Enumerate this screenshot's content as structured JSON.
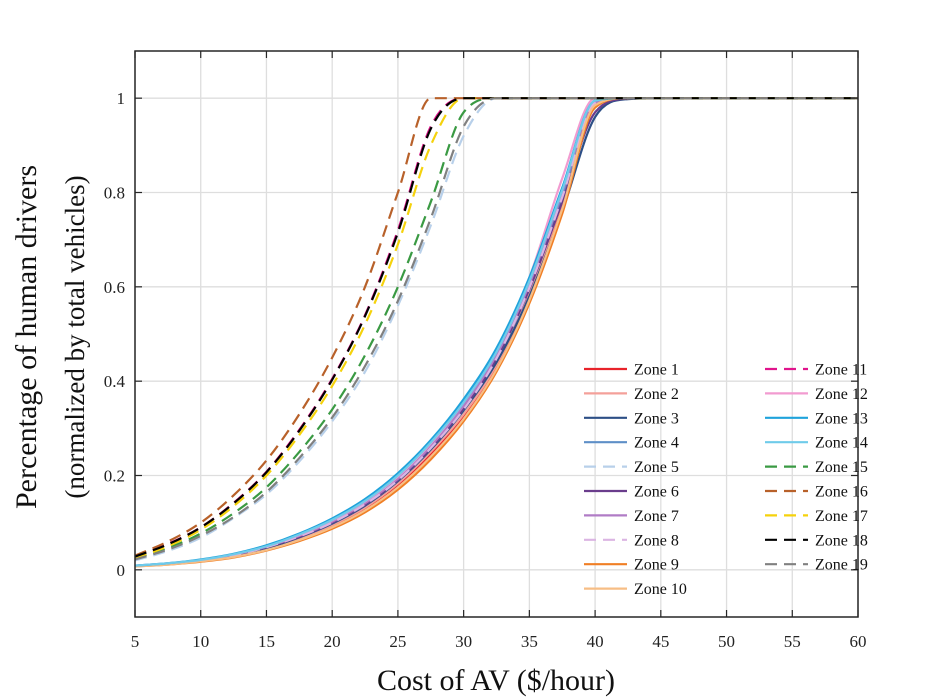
{
  "chart_data": {
    "type": "line",
    "xlabel": "Cost of AV ($/hour)",
    "ylabel_line1": "Percentage of human drivers",
    "ylabel_line2": "(normalized by total vehicles)",
    "xlim": [
      5,
      60
    ],
    "ylim": [
      -0.1,
      1.1
    ],
    "xticks": [
      5,
      10,
      15,
      20,
      25,
      30,
      35,
      40,
      45,
      50,
      55,
      60
    ],
    "yticks": [
      0,
      0.2,
      0.4,
      0.6,
      0.8,
      1
    ],
    "ytick_labels": [
      "0",
      "0.2",
      "0.4",
      "0.6",
      "0.8",
      "1"
    ],
    "grid": true,
    "legend_position": "lower-right",
    "legend_columns": 2,
    "x": [
      5,
      7.5,
      10,
      12.5,
      15,
      17.5,
      20,
      22.5,
      25,
      27.5,
      30,
      32.5,
      35,
      37.5,
      40,
      42.5,
      45,
      50,
      55,
      60
    ],
    "series": [
      {
        "name": "Zone 1",
        "color": "#e8232a",
        "dash": "solid",
        "values": [
          0.008,
          0.012,
          0.018,
          0.028,
          0.044,
          0.066,
          0.093,
          0.13,
          0.18,
          0.245,
          0.325,
          0.43,
          0.58,
          0.77,
          0.985,
          1,
          1,
          1,
          1,
          1
        ]
      },
      {
        "name": "Zone 2",
        "color": "#f4a09a",
        "dash": "solid",
        "values": [
          0.008,
          0.012,
          0.019,
          0.029,
          0.045,
          0.067,
          0.095,
          0.132,
          0.183,
          0.25,
          0.33,
          0.435,
          0.585,
          0.78,
          0.99,
          1,
          1,
          1,
          1,
          1
        ]
      },
      {
        "name": "Zone 3",
        "color": "#2d4f86",
        "dash": "solid",
        "values": [
          0.008,
          0.012,
          0.019,
          0.03,
          0.046,
          0.069,
          0.098,
          0.136,
          0.188,
          0.255,
          0.338,
          0.44,
          0.58,
          0.76,
          0.96,
          0.998,
          1,
          1,
          1,
          1
        ]
      },
      {
        "name": "Zone 4",
        "color": "#5e8fc7",
        "dash": "solid",
        "values": [
          0.008,
          0.013,
          0.02,
          0.031,
          0.048,
          0.071,
          0.1,
          0.138,
          0.19,
          0.258,
          0.342,
          0.45,
          0.6,
          0.79,
          0.992,
          1,
          1,
          1,
          1,
          1
        ]
      },
      {
        "name": "Zone 5",
        "color": "#b8d0ea",
        "dash": "dash",
        "values": [
          0.02,
          0.04,
          0.068,
          0.11,
          0.16,
          0.23,
          0.315,
          0.42,
          0.56,
          0.73,
          0.92,
          1,
          1,
          1,
          1,
          1,
          1,
          1,
          1,
          1
        ]
      },
      {
        "name": "Zone 6",
        "color": "#6a3d8c",
        "dash": "solid",
        "values": [
          0.008,
          0.013,
          0.02,
          0.031,
          0.048,
          0.07,
          0.1,
          0.138,
          0.19,
          0.258,
          0.342,
          0.448,
          0.595,
          0.78,
          0.97,
          0.999,
          1,
          1,
          1,
          1
        ]
      },
      {
        "name": "Zone 7",
        "color": "#b07cc6",
        "dash": "solid",
        "values": [
          0.008,
          0.013,
          0.02,
          0.032,
          0.049,
          0.072,
          0.102,
          0.141,
          0.193,
          0.262,
          0.348,
          0.455,
          0.605,
          0.8,
          0.99,
          1,
          1,
          1,
          1,
          1
        ]
      },
      {
        "name": "Zone 8",
        "color": "#dbb5e3",
        "dash": "dash",
        "values": [
          0.008,
          0.013,
          0.02,
          0.031,
          0.048,
          0.071,
          0.1,
          0.139,
          0.19,
          0.258,
          0.34,
          0.448,
          0.598,
          0.79,
          0.99,
          1,
          1,
          1,
          1,
          1
        ]
      },
      {
        "name": "Zone 9",
        "color": "#f07f25",
        "dash": "solid",
        "values": [
          0.007,
          0.011,
          0.017,
          0.026,
          0.041,
          0.061,
          0.087,
          0.122,
          0.17,
          0.234,
          0.315,
          0.42,
          0.565,
          0.755,
          0.98,
          1,
          1,
          1,
          1,
          1
        ]
      },
      {
        "name": "Zone 10",
        "color": "#f7be85",
        "dash": "solid",
        "values": [
          0.007,
          0.011,
          0.018,
          0.027,
          0.042,
          0.063,
          0.09,
          0.126,
          0.175,
          0.24,
          0.32,
          0.425,
          0.572,
          0.765,
          0.985,
          1,
          1,
          1,
          1,
          1
        ]
      },
      {
        "name": "Zone 11",
        "color": "#e0148c",
        "dash": "dash",
        "values": [
          0.028,
          0.055,
          0.09,
          0.142,
          0.208,
          0.297,
          0.405,
          0.54,
          0.72,
          0.94,
          1,
          1,
          1,
          1,
          1,
          1,
          1,
          1,
          1,
          1
        ]
      },
      {
        "name": "Zone 12",
        "color": "#f29bd0",
        "dash": "solid",
        "values": [
          0.009,
          0.014,
          0.021,
          0.033,
          0.05,
          0.074,
          0.105,
          0.145,
          0.198,
          0.268,
          0.355,
          0.465,
          0.62,
          0.83,
          1,
          1,
          1,
          1,
          1,
          1
        ]
      },
      {
        "name": "Zone 13",
        "color": "#1fa3db",
        "dash": "solid",
        "values": [
          0.009,
          0.014,
          0.022,
          0.034,
          0.052,
          0.077,
          0.109,
          0.15,
          0.205,
          0.275,
          0.362,
          0.47,
          0.62,
          0.81,
          0.995,
          1,
          1,
          1,
          1,
          1
        ]
      },
      {
        "name": "Zone 14",
        "color": "#6fcbea",
        "dash": "solid",
        "values": [
          0.009,
          0.014,
          0.021,
          0.033,
          0.05,
          0.075,
          0.106,
          0.146,
          0.2,
          0.27,
          0.355,
          0.462,
          0.612,
          0.805,
          0.995,
          1,
          1,
          1,
          1,
          1
        ]
      },
      {
        "name": "Zone 15",
        "color": "#3a9a43",
        "dash": "dash",
        "values": [
          0.025,
          0.046,
          0.077,
          0.12,
          0.175,
          0.25,
          0.34,
          0.455,
          0.6,
          0.78,
          0.97,
          1,
          1,
          1,
          1,
          1,
          1,
          1,
          1,
          1
        ]
      },
      {
        "name": "Zone 16",
        "color": "#b8612a",
        "dash": "dash",
        "values": [
          0.03,
          0.06,
          0.1,
          0.158,
          0.232,
          0.33,
          0.45,
          0.6,
          0.8,
          1,
          1,
          1,
          1,
          1,
          1,
          1,
          1,
          1,
          1,
          1
        ]
      },
      {
        "name": "Zone 17",
        "color": "#f5d20c",
        "dash": "dash",
        "values": [
          0.025,
          0.05,
          0.085,
          0.135,
          0.2,
          0.286,
          0.39,
          0.52,
          0.69,
          0.9,
          1,
          1,
          1,
          1,
          1,
          1,
          1,
          1,
          1,
          1
        ]
      },
      {
        "name": "Zone 18",
        "color": "#000000",
        "dash": "dash",
        "values": [
          0.028,
          0.054,
          0.09,
          0.141,
          0.207,
          0.295,
          0.403,
          0.538,
          0.715,
          0.935,
          1,
          1,
          1,
          1,
          1,
          1,
          1,
          1,
          1,
          1
        ]
      },
      {
        "name": "Zone 19",
        "color": "#808080",
        "dash": "dash",
        "values": [
          0.022,
          0.043,
          0.072,
          0.112,
          0.165,
          0.237,
          0.323,
          0.432,
          0.57,
          0.745,
          0.94,
          1,
          1,
          1,
          1,
          1,
          1,
          1,
          1,
          1
        ]
      }
    ]
  }
}
